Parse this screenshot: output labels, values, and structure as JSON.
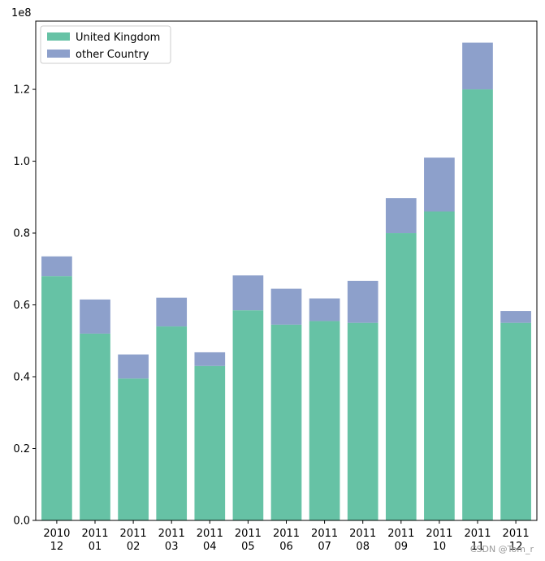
{
  "chart_data": {
    "type": "bar",
    "stacked": true,
    "categories": [
      [
        "2010",
        "12"
      ],
      [
        "2011",
        "01"
      ],
      [
        "2011",
        "02"
      ],
      [
        "2011",
        "03"
      ],
      [
        "2011",
        "04"
      ],
      [
        "2011",
        "05"
      ],
      [
        "2011",
        "06"
      ],
      [
        "2011",
        "07"
      ],
      [
        "2011",
        "08"
      ],
      [
        "2011",
        "09"
      ],
      [
        "2011",
        "10"
      ],
      [
        "2011",
        "11"
      ],
      [
        "2011",
        "12"
      ]
    ],
    "series": [
      {
        "name": "United Kingdom",
        "color": "#66c2a5",
        "values": [
          0.68,
          0.52,
          0.395,
          0.54,
          0.43,
          0.585,
          0.545,
          0.555,
          0.55,
          0.8,
          0.86,
          1.2,
          0.55
        ]
      },
      {
        "name": "other Country",
        "color": "#8da0cb",
        "values": [
          0.055,
          0.095,
          0.067,
          0.08,
          0.038,
          0.097,
          0.1,
          0.063,
          0.117,
          0.097,
          0.15,
          0.13,
          0.033
        ]
      }
    ],
    "y_scale_label": "1e8",
    "ylim": [
      0,
      1.39
    ],
    "yticks": [
      "0.0",
      "0.2",
      "0.4",
      "0.6",
      "0.8",
      "1.0",
      "1.2"
    ],
    "legend_position": "top-left",
    "grid": false,
    "title": "",
    "xlabel": "",
    "ylabel": ""
  },
  "watermark": "CSDN @Tom_r"
}
